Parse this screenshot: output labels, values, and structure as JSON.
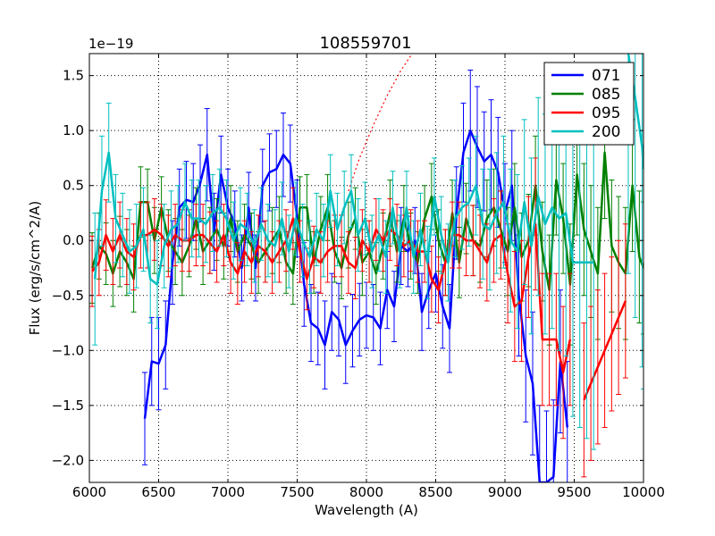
{
  "chart_data": {
    "type": "line",
    "title": "108559701",
    "xlabel": "Wavelength (A)",
    "ylabel": "Flux (erg/s/cm^2/A)",
    "y_scale_label": "1e−19",
    "xlim": [
      6000,
      10000
    ],
    "ylim": [
      -2.2,
      1.7
    ],
    "grid": true,
    "legend_position": "top-right",
    "x_ticks": [
      6000,
      6500,
      7000,
      7500,
      8000,
      8500,
      9000,
      9500,
      10000
    ],
    "x_tick_labels": [
      "6000",
      "6500",
      "7000",
      "7500",
      "8000",
      "8500",
      "9000",
      "9500",
      "10000"
    ],
    "y_ticks": [
      -2.0,
      -1.5,
      -1.0,
      -0.5,
      0.0,
      0.5,
      1.0,
      1.5
    ],
    "y_tick_labels": [
      "−2.0",
      "−1.5",
      "−1.0",
      "−0.5",
      "0.0",
      "0.5",
      "1.0",
      "1.5"
    ],
    "series": [
      {
        "name": "071",
        "color": "#0000ff",
        "x": [
          6400,
          6450,
          6500,
          6550,
          6600,
          6650,
          6700,
          6750,
          6800,
          6850,
          6900,
          6950,
          7000,
          7050,
          7100,
          7150,
          7200,
          7250,
          7300,
          7350,
          7400,
          7450,
          7500,
          7550,
          7600,
          7650,
          7700,
          7750,
          7800,
          7850,
          7900,
          7950,
          8000,
          8050,
          8100,
          8150,
          8200,
          8250,
          8300,
          8350,
          8400,
          8450,
          8500,
          8550,
          8600,
          8650,
          8700,
          8750,
          8800,
          8850,
          8900,
          8950,
          9000,
          9050,
          9100,
          9150,
          9200,
          9250,
          9300,
          9350,
          9400,
          9450,
          9500
        ],
        "y": [
          -1.62,
          -1.1,
          -1.12,
          -0.95,
          -0.2,
          0.3,
          0.37,
          0.35,
          0.52,
          0.78,
          0.08,
          0.6,
          0.3,
          0.15,
          -0.25,
          0.3,
          -0.25,
          0.5,
          0.62,
          0.65,
          0.78,
          0.7,
          0.2,
          -0.4,
          -0.75,
          -0.8,
          -0.95,
          -0.65,
          -0.72,
          -0.95,
          -0.82,
          -0.72,
          -0.68,
          -0.7,
          -0.8,
          -0.45,
          -0.6,
          -0.05,
          -0.1,
          0.0,
          -0.65,
          -0.45,
          -0.3,
          -0.6,
          -0.8,
          0.25,
          0.8,
          1.0,
          0.85,
          0.72,
          0.78,
          0.62,
          0.25,
          0.5,
          -0.5,
          -1.05,
          -1.3,
          -2.2,
          -2.2,
          -2.15,
          -1.1,
          -1.7,
          null
        ],
        "yerr": [
          0.42,
          0.4,
          0.42,
          0.4,
          0.38,
          0.35,
          0.35,
          0.35,
          0.35,
          0.42,
          0.35,
          0.35,
          0.35,
          0.3,
          0.3,
          0.32,
          0.3,
          0.33,
          0.35,
          0.35,
          0.38,
          0.35,
          0.35,
          0.38,
          0.35,
          0.33,
          0.4,
          0.35,
          0.33,
          0.35,
          0.33,
          0.33,
          0.3,
          0.3,
          0.33,
          0.35,
          0.32,
          0.35,
          0.32,
          0.3,
          0.35,
          0.35,
          0.35,
          0.38,
          0.4,
          0.42,
          0.45,
          0.55,
          0.55,
          0.45,
          0.5,
          0.5,
          0.45,
          0.5,
          0.55,
          0.6,
          0.65,
          0.7,
          0.65,
          0.7,
          0.65,
          0.6,
          0.5
        ]
      },
      {
        "name": "085",
        "color": "#008000",
        "x": [
          6020,
          6070,
          6120,
          6170,
          6220,
          6270,
          6320,
          6370,
          6420,
          6470,
          6520,
          6570,
          6620,
          6670,
          6720,
          6770,
          6820,
          6870,
          6920,
          6970,
          7020,
          7070,
          7120,
          7170,
          7220,
          7270,
          7320,
          7370,
          7420,
          7470,
          7520,
          7570,
          7620,
          7670,
          7720,
          7770,
          7820,
          7870,
          7920,
          7970,
          8020,
          8070,
          8120,
          8170,
          8220,
          8270,
          8320,
          8370,
          8420,
          8470,
          8520,
          8570,
          8620,
          8670,
          8720,
          8770,
          8820,
          8870,
          8920,
          8970,
          9020,
          9070,
          9120,
          9170,
          9220,
          9270,
          9320,
          9370,
          9420,
          9470,
          9520,
          9570,
          9620,
          9670,
          9720,
          9770,
          9820,
          9870,
          9920,
          9970,
          10000
        ],
        "y": [
          -0.25,
          -0.05,
          -0.12,
          -0.3,
          -0.1,
          -0.2,
          -0.35,
          0.35,
          0.35,
          0.0,
          0.3,
          0.0,
          -0.1,
          -0.2,
          -0.05,
          0.2,
          -0.1,
          0.0,
          0.1,
          -0.05,
          0.2,
          -0.1,
          0.05,
          -0.05,
          -0.2,
          -0.1,
          0.0,
          0.1,
          -0.2,
          -0.3,
          0.3,
          0.3,
          -0.2,
          0.1,
          0.3,
          -0.1,
          -0.25,
          0.05,
          0.2,
          -0.2,
          -0.1,
          -0.3,
          -0.05,
          0.25,
          -0.1,
          0.2,
          -0.05,
          -0.2,
          0.2,
          0.4,
          0.0,
          -0.2,
          0.25,
          -0.2,
          0.2,
          0.0,
          -0.05,
          0.2,
          0.3,
          0.1,
          -0.1,
          0.3,
          -0.15,
          0.0,
          0.5,
          -0.1,
          -0.45,
          0.55,
          0.2,
          -0.4,
          0.6,
          0.1,
          -0.1,
          -0.3,
          0.8,
          -0.05,
          -0.2,
          -0.3,
          0.5,
          -0.15,
          -0.25
        ],
        "yerr": [
          0.32,
          0.3,
          0.28,
          0.3,
          0.32,
          0.3,
          0.3,
          0.32,
          0.3,
          0.3,
          0.28,
          0.28,
          0.3,
          0.3,
          0.28,
          0.28,
          0.3,
          0.3,
          0.28,
          0.3,
          0.3,
          0.28,
          0.28,
          0.3,
          0.28,
          0.28,
          0.3,
          0.3,
          0.28,
          0.28,
          0.28,
          0.3,
          0.28,
          0.3,
          0.3,
          0.28,
          0.28,
          0.3,
          0.28,
          0.3,
          0.28,
          0.28,
          0.3,
          0.3,
          0.28,
          0.3,
          0.3,
          0.28,
          0.3,
          0.3,
          0.28,
          0.3,
          0.3,
          0.32,
          0.32,
          0.32,
          0.33,
          0.35,
          0.35,
          0.35,
          0.4,
          0.4,
          0.4,
          0.42,
          0.45,
          0.45,
          0.5,
          0.5,
          0.5,
          0.55,
          0.55,
          0.6,
          0.6,
          0.6,
          0.6,
          0.6,
          0.6,
          0.6,
          0.6,
          0.6,
          0.6
        ]
      },
      {
        "name": "095",
        "color": "#ff0000",
        "x": [
          6020,
          6070,
          6120,
          6170,
          6220,
          6270,
          6320,
          6370,
          6420,
          6470,
          6520,
          6570,
          6620,
          6670,
          6720,
          6770,
          6820,
          6870,
          6920,
          6970,
          7020,
          7070,
          7120,
          7170,
          7220,
          7270,
          7320,
          7370,
          7420,
          7470,
          7520,
          7570,
          7620,
          7670,
          7720,
          7770,
          7820,
          7870,
          7920,
          7970,
          8020,
          8070,
          8120,
          8170,
          8220,
          8270,
          8320,
          8370,
          8420,
          8470,
          8520,
          8570,
          8620,
          8670,
          8720,
          8770,
          8820,
          8870,
          8920,
          8970,
          9020,
          9070,
          9120,
          9170,
          9220,
          9270,
          9320,
          9370,
          9420,
          9470,
          9520,
          9570,
          9620,
          9670,
          9720,
          9770,
          9820,
          9870
        ],
        "y": [
          -0.28,
          -0.2,
          0.05,
          -0.1,
          0.05,
          -0.1,
          -0.15,
          0.05,
          0.05,
          0.1,
          0.05,
          -0.05,
          0.05,
          0.0,
          0.0,
          0.05,
          0.05,
          -0.02,
          -0.1,
          0.05,
          -0.2,
          -0.3,
          -0.1,
          -0.2,
          -0.05,
          -0.1,
          -0.2,
          -0.1,
          0.0,
          0.2,
          -0.1,
          -0.35,
          -0.15,
          -0.2,
          -0.1,
          -0.05,
          -0.05,
          -0.2,
          -0.25,
          0.0,
          -0.1,
          0.1,
          0.0,
          0.1,
          0.05,
          -0.05,
          0.0,
          -0.1,
          -0.1,
          -0.35,
          -0.45,
          -0.2,
          0.05,
          0.05,
          0.0,
          0.0,
          -0.1,
          -0.2,
          0.0,
          0.05,
          -0.3,
          -0.6,
          -0.55,
          -0.15,
          0.15,
          -0.9,
          -0.9,
          -0.9,
          -1.2,
          -0.9,
          null,
          -1.45,
          -1.3,
          -1.15,
          -1.0,
          -0.85,
          -0.7,
          -0.55
        ],
        "yerr": [
          0.32,
          0.3,
          0.32,
          0.3,
          0.3,
          0.3,
          0.3,
          0.3,
          0.3,
          0.28,
          0.28,
          0.28,
          0.28,
          0.28,
          0.28,
          0.28,
          0.28,
          0.28,
          0.28,
          0.28,
          0.28,
          0.28,
          0.28,
          0.28,
          0.28,
          0.28,
          0.28,
          0.28,
          0.28,
          0.28,
          0.28,
          0.28,
          0.28,
          0.28,
          0.28,
          0.28,
          0.28,
          0.28,
          0.28,
          0.28,
          0.28,
          0.28,
          0.28,
          0.28,
          0.28,
          0.28,
          0.28,
          0.28,
          0.28,
          0.3,
          0.3,
          0.3,
          0.3,
          0.3,
          0.32,
          0.32,
          0.33,
          0.35,
          0.38,
          0.4,
          0.45,
          0.5,
          0.55,
          0.55,
          0.6,
          0.6,
          0.6,
          0.6,
          0.6,
          0.6,
          0.65,
          0.7,
          0.7,
          0.7,
          0.7,
          0.7,
          0.7,
          0.7
        ]
      },
      {
        "name": "200",
        "color": "#00bfbf",
        "x": [
          6040,
          6090,
          6140,
          6190,
          6240,
          6290,
          6340,
          6390,
          6440,
          6490,
          6540,
          6590,
          6640,
          6690,
          6740,
          6790,
          6840,
          6890,
          6940,
          6990,
          7040,
          7090,
          7140,
          7190,
          7240,
          7290,
          7340,
          7390,
          7440,
          7490,
          7540,
          7590,
          7640,
          7690,
          7740,
          7790,
          7840,
          7890,
          7940,
          7990,
          8040,
          8090,
          8140,
          8190,
          8240,
          8290,
          8340,
          8390,
          8440,
          8490,
          8540,
          8590,
          8640,
          8690,
          8740,
          8790,
          8840,
          8890,
          8940,
          8990,
          9040,
          9090,
          9140,
          9190,
          9240,
          9290,
          9340,
          9390,
          9440,
          9490,
          9540,
          9590,
          9640,
          9690,
          9740,
          9790,
          9840,
          9890,
          9940,
          9990,
          10000
        ],
        "y": [
          -0.35,
          0.45,
          0.8,
          0.2,
          0.05,
          -0.1,
          -0.05,
          0.1,
          -0.35,
          -0.4,
          -0.05,
          0.1,
          0.15,
          0.35,
          0.2,
          0.2,
          0.15,
          0.25,
          0.3,
          0.2,
          0.0,
          0.15,
          0.1,
          -0.05,
          0.15,
          0.0,
          -0.05,
          0.2,
          -0.1,
          0.2,
          0.0,
          -0.15,
          0.1,
          0.0,
          0.45,
          0.1,
          0.3,
          0.45,
          0.05,
          0.2,
          -0.1,
          0.05,
          -0.15,
          0.3,
          -0.1,
          0.3,
          -0.15,
          0.1,
          -0.2,
          0.4,
          0.05,
          -0.2,
          0.2,
          0.3,
          0.35,
          0.5,
          0.15,
          0.1,
          0.25,
          0.35,
          0.0,
          -0.1,
          0.35,
          -0.05,
          0.4,
          0.15,
          0.3,
          0.2,
          0.25,
          -0.2,
          -0.2,
          -0.2,
          -0.2,
          null,
          null,
          null,
          null,
          1.7,
          1.3,
          0.85,
          0.65
        ],
        "yerr": [
          0.6,
          0.5,
          0.45,
          0.4,
          0.38,
          0.38,
          0.38,
          0.38,
          0.4,
          0.4,
          0.38,
          0.35,
          0.35,
          0.35,
          0.35,
          0.35,
          0.35,
          0.35,
          0.35,
          0.35,
          0.35,
          0.33,
          0.33,
          0.33,
          0.33,
          0.33,
          0.33,
          0.33,
          0.33,
          0.33,
          0.33,
          0.33,
          0.33,
          0.33,
          0.33,
          0.33,
          0.33,
          0.33,
          0.33,
          0.33,
          0.33,
          0.33,
          0.33,
          0.33,
          0.33,
          0.33,
          0.33,
          0.33,
          0.33,
          0.35,
          0.35,
          0.35,
          0.35,
          0.38,
          0.4,
          0.45,
          0.5,
          0.55,
          0.55,
          0.6,
          0.65,
          0.7,
          0.75,
          0.8,
          0.9,
          1.0,
          1.1,
          1.2,
          1.3,
          1.4,
          1.5,
          1.6,
          1.7,
          1.8,
          1.9,
          2.0,
          2.0,
          2.0,
          2.0,
          2.0,
          2.0
        ]
      }
    ],
    "overlay": {
      "name": "dotted reference curve",
      "color": "#ff0000",
      "style": "dotted",
      "x": [
        7870,
        7950,
        8050,
        8150,
        8250,
        8330
      ],
      "y": [
        0.45,
        0.75,
        1.05,
        1.32,
        1.55,
        1.7
      ]
    },
    "legend": [
      "071",
      "085",
      "095",
      "200"
    ]
  }
}
